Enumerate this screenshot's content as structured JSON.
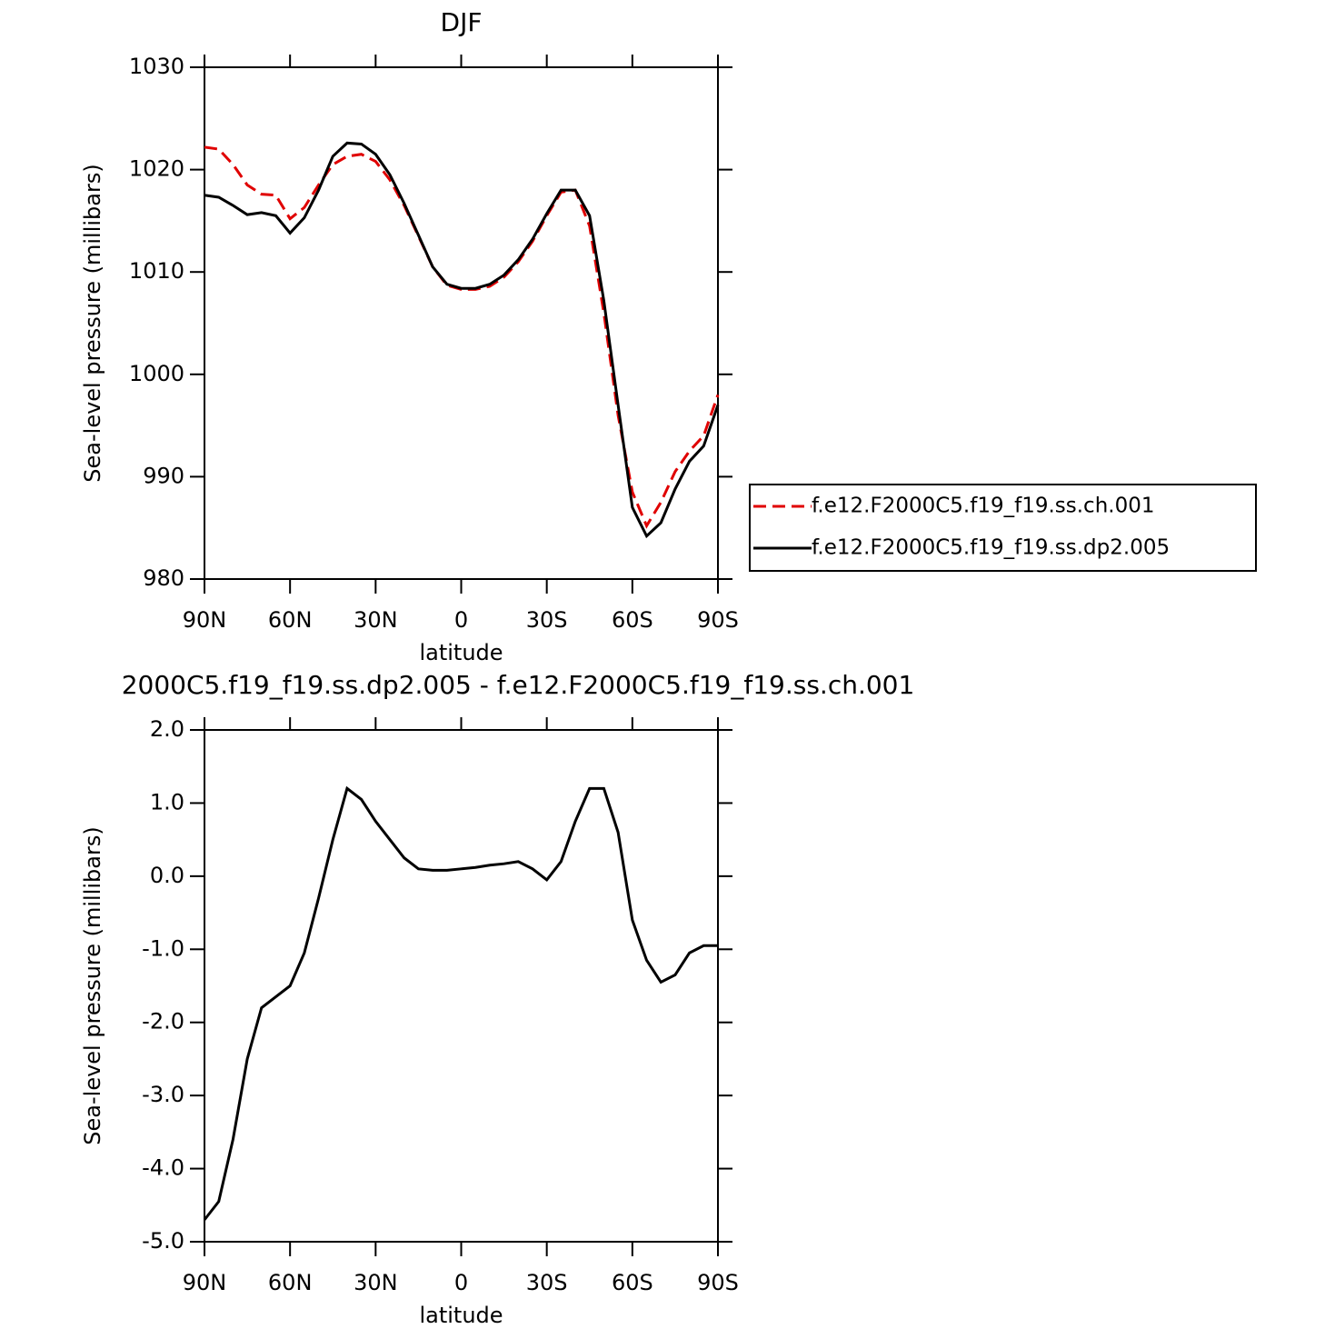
{
  "chart_data": [
    {
      "type": "line",
      "title": "DJF",
      "x_label": "latitude",
      "y_label": "Sea-level pressure (millibars)",
      "x": [
        90,
        85,
        80,
        75,
        70,
        65,
        60,
        55,
        50,
        45,
        40,
        35,
        30,
        25,
        20,
        15,
        10,
        5,
        0,
        -5,
        -10,
        -15,
        -20,
        -25,
        -30,
        -35,
        -40,
        -45,
        -50,
        -55,
        -60,
        -65,
        -70,
        -75,
        -80,
        -85,
        -90
      ],
      "xlim": [
        90,
        -90
      ],
      "xticks": [
        {
          "value": 90,
          "label": "90N"
        },
        {
          "value": 60,
          "label": "60N"
        },
        {
          "value": 30,
          "label": "30N"
        },
        0,
        {
          "value": -30,
          "label": "30S"
        },
        {
          "value": -60,
          "label": "60S"
        },
        {
          "value": -90,
          "label": "90S"
        }
      ],
      "ylim": [
        980,
        1030
      ],
      "yticks": [
        980,
        990,
        1000,
        1010,
        1020,
        1030
      ],
      "legend": "right",
      "series": [
        {
          "name": "f.e12.F2000C5.f19_f19.ss.ch.001",
          "color": "#e00000",
          "dash": true,
          "values": [
            1022.2,
            1022.0,
            1020.5,
            1018.5,
            1017.6,
            1017.5,
            1015.2,
            1016.3,
            1018.5,
            1020.5,
            1021.3,
            1021.5,
            1020.8,
            1019.0,
            1016.5,
            1013.5,
            1010.5,
            1008.7,
            1008.3,
            1008.3,
            1008.6,
            1009.5,
            1011.0,
            1013.0,
            1015.5,
            1017.8,
            1018.0,
            1014.5,
            1006.0,
            996.0,
            988.5,
            985.2,
            987.5,
            990.5,
            992.5,
            994.0,
            998.0
          ]
        },
        {
          "name": "f.e12.F2000C5.f19_f19.ss.dp2.005",
          "color": "#000000",
          "dash": false,
          "values": [
            1017.5,
            1017.3,
            1016.5,
            1015.6,
            1015.8,
            1015.5,
            1013.8,
            1015.3,
            1018.0,
            1021.3,
            1022.6,
            1022.5,
            1021.5,
            1019.5,
            1016.7,
            1013.6,
            1010.5,
            1008.8,
            1008.4,
            1008.4,
            1008.8,
            1009.7,
            1011.2,
            1013.2,
            1015.7,
            1018.0,
            1018.0,
            1015.5,
            1007.2,
            997.0,
            987.0,
            984.2,
            985.5,
            988.8,
            991.5,
            993.0,
            997.0
          ]
        }
      ]
    },
    {
      "type": "line",
      "title": "2000C5.f19_f19.ss.dp2.005 - f.e12.F2000C5.f19_f19.ss.ch.001",
      "x_label": "latitude",
      "y_label": "Sea-level pressure (millibars)",
      "x": [
        90,
        85,
        80,
        75,
        70,
        65,
        60,
        55,
        50,
        45,
        40,
        35,
        30,
        25,
        20,
        15,
        10,
        5,
        0,
        -5,
        -10,
        -15,
        -20,
        -25,
        -30,
        -35,
        -40,
        -45,
        -50,
        -55,
        -60,
        -65,
        -70,
        -75,
        -80,
        -85,
        -90
      ],
      "xlim": [
        90,
        -90
      ],
      "xticks": [
        {
          "value": 90,
          "label": "90N"
        },
        {
          "value": 60,
          "label": "60N"
        },
        {
          "value": 30,
          "label": "30N"
        },
        0,
        {
          "value": -30,
          "label": "30S"
        },
        {
          "value": -60,
          "label": "60S"
        },
        {
          "value": -90,
          "label": "90S"
        }
      ],
      "ylim": [
        -5,
        2
      ],
      "yticks": [
        {
          "value": -5,
          "label": "-5.0"
        },
        {
          "value": -4,
          "label": "-4.0"
        },
        {
          "value": -3,
          "label": "-3.0"
        },
        {
          "value": -2,
          "label": "-2.0"
        },
        {
          "value": -1,
          "label": "-1.0"
        },
        {
          "value": 0,
          "label": "0.0"
        },
        {
          "value": 1,
          "label": "1.0"
        },
        {
          "value": 2,
          "label": "2.0"
        }
      ],
      "color": "#000000",
      "values": [
        -4.7,
        -4.45,
        -3.6,
        -2.5,
        -1.8,
        -1.65,
        -1.5,
        -1.05,
        -0.3,
        0.5,
        1.2,
        1.05,
        0.75,
        0.5,
        0.25,
        0.1,
        0.08,
        0.08,
        0.1,
        0.12,
        0.15,
        0.17,
        0.2,
        0.1,
        -0.05,
        0.2,
        0.75,
        1.2,
        1.2,
        0.6,
        -0.6,
        -1.15,
        -1.45,
        -1.35,
        -1.05,
        -0.95,
        -0.95
      ]
    }
  ]
}
